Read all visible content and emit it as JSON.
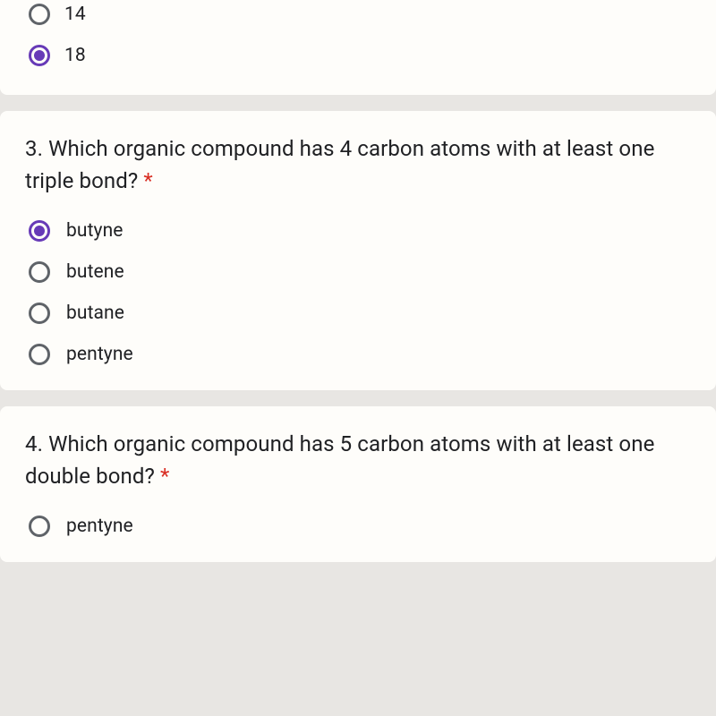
{
  "colors": {
    "page_bg": "#e8e6e3",
    "card_bg": "#fefdfa",
    "text": "#202124",
    "radio_border": "#5f6368",
    "radio_selected": "#673ab7",
    "required": "#d93025"
  },
  "question_prev": {
    "options": [
      {
        "label": "14",
        "selected": false
      },
      {
        "label": "18",
        "selected": true
      }
    ]
  },
  "question3": {
    "number": "3.",
    "text": "Which organic compound has 4 carbon atoms with at least one triple bond?",
    "required_mark": "*",
    "options": [
      {
        "label": "butyne",
        "selected": true
      },
      {
        "label": "butene",
        "selected": false
      },
      {
        "label": "butane",
        "selected": false
      },
      {
        "label": "pentyne",
        "selected": false
      }
    ]
  },
  "question4": {
    "number": "4.",
    "text": "Which organic compound has 5 carbon atoms with at least one double bond?",
    "required_mark": "*",
    "options": [
      {
        "label": "pentyne",
        "selected": false
      }
    ]
  }
}
